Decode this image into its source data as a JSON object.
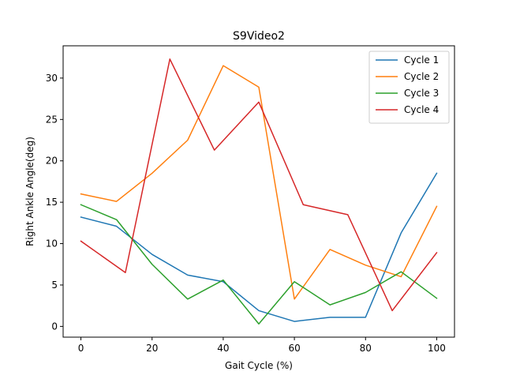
{
  "chart_data": {
    "type": "line",
    "title": "S9Video2",
    "xlabel": "Gait Cycle (%)",
    "ylabel": "Right Ankle Angle(deg)",
    "xlim": [
      -5,
      105
    ],
    "ylim": [
      -1.3,
      33.9
    ],
    "xticks": [
      0,
      20,
      40,
      60,
      80,
      100
    ],
    "yticks": [
      0,
      5,
      10,
      15,
      20,
      25,
      30
    ],
    "grid": false,
    "legend_position": "top-right",
    "series": [
      {
        "name": "Cycle 1",
        "color": "#1f77b4",
        "points": [
          [
            0,
            13.2
          ],
          [
            10,
            12.1
          ],
          [
            20,
            8.7
          ],
          [
            30,
            6.2
          ],
          [
            40,
            5.4
          ],
          [
            50,
            1.9
          ],
          [
            60,
            0.6
          ],
          [
            70,
            1.1
          ],
          [
            80,
            1.1
          ],
          [
            90,
            11.3
          ],
          [
            100,
            18.5
          ]
        ]
      },
      {
        "name": "Cycle 2",
        "color": "#ff7f0e",
        "points": [
          [
            0,
            16.0
          ],
          [
            10,
            15.1
          ],
          [
            20,
            18.5
          ],
          [
            30,
            22.5
          ],
          [
            40,
            31.5
          ],
          [
            50,
            28.9
          ],
          [
            60,
            3.3
          ],
          [
            70,
            9.3
          ],
          [
            80,
            7.4
          ],
          [
            90,
            6.0
          ],
          [
            100,
            14.5
          ]
        ]
      },
      {
        "name": "Cycle 3",
        "color": "#2ca02c",
        "points": [
          [
            0,
            14.7
          ],
          [
            10,
            12.9
          ],
          [
            20,
            7.5
          ],
          [
            30,
            3.3
          ],
          [
            40,
            5.6
          ],
          [
            50,
            0.3
          ],
          [
            60,
            5.4
          ],
          [
            70,
            2.6
          ],
          [
            80,
            4.1
          ],
          [
            90,
            6.6
          ],
          [
            100,
            3.4
          ]
        ]
      },
      {
        "name": "Cycle 4",
        "color": "#d62728",
        "points": [
          [
            0,
            10.3
          ],
          [
            12.5,
            6.5
          ],
          [
            25,
            32.3
          ],
          [
            37.5,
            21.3
          ],
          [
            50,
            27.1
          ],
          [
            62.5,
            14.7
          ],
          [
            75,
            13.5
          ],
          [
            87.5,
            1.9
          ],
          [
            100,
            8.9
          ]
        ]
      }
    ]
  }
}
